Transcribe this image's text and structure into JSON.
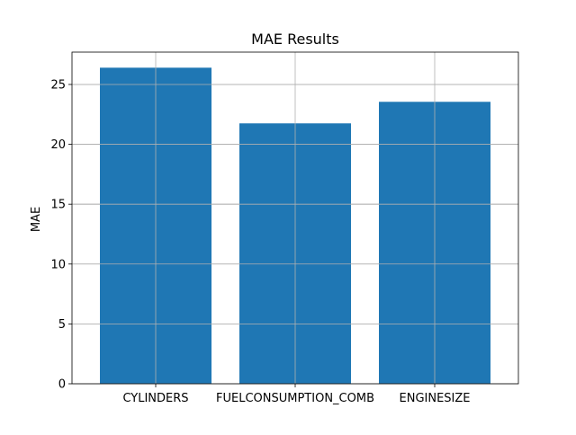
{
  "chart_data": {
    "type": "bar",
    "title": "MAE Results",
    "xlabel": "",
    "ylabel": "MAE",
    "categories": [
      "CYLINDERS",
      "FUELCONSUMPTION_COMB",
      "ENGINESIZE"
    ],
    "values": [
      26.4,
      21.75,
      23.55
    ],
    "ylim": [
      0,
      27.7
    ],
    "yticks": [
      0,
      5,
      10,
      15,
      20,
      25
    ],
    "grid": true,
    "bar_color": "#1f77b4",
    "grid_color": "#b0b0b0"
  }
}
